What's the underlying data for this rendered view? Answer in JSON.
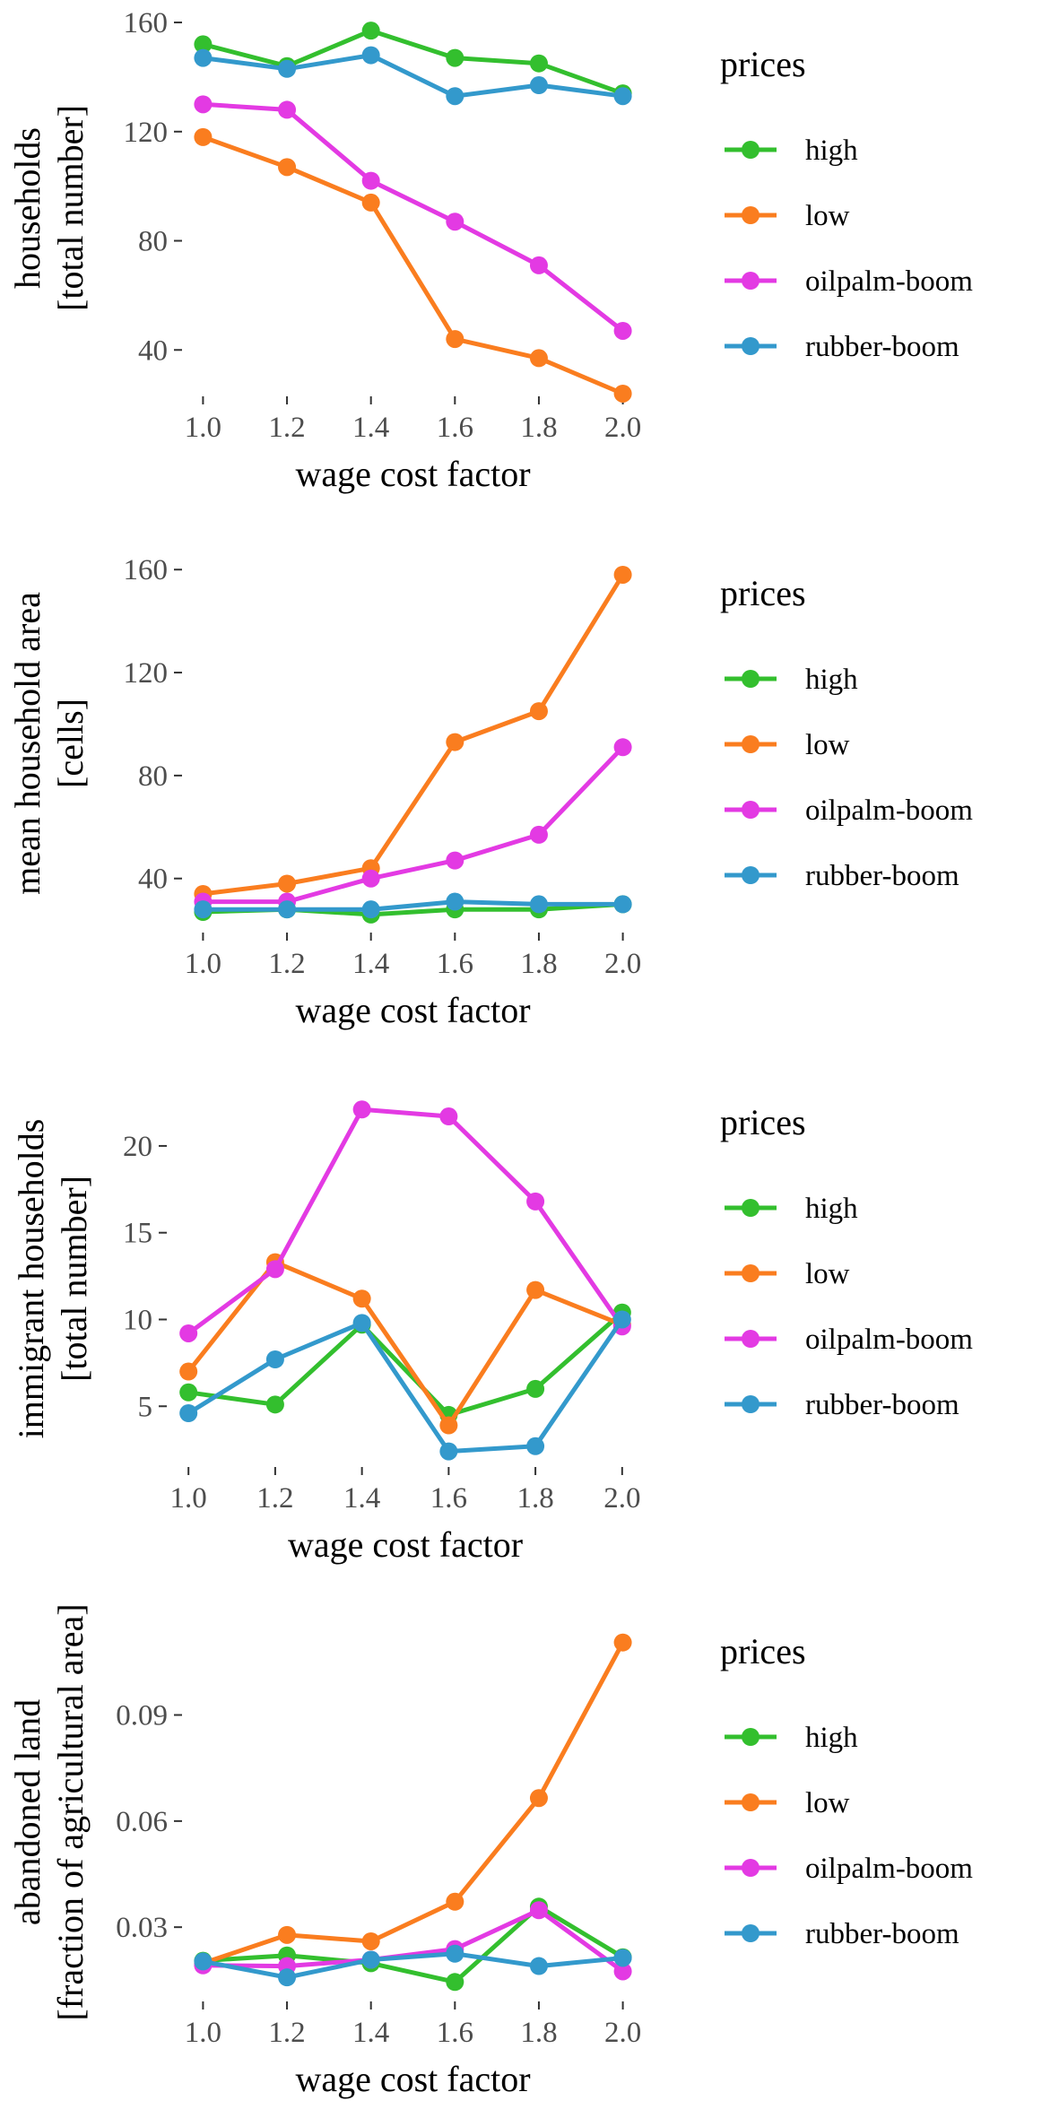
{
  "colors": {
    "high": "#33bf2e",
    "low": "#fa7d1f",
    "oilpalm-boom": "#e33ae3",
    "rubber-boom": "#3399cc",
    "tick": "#333333",
    "tick_label": "#4d4d4d"
  },
  "legend": {
    "title": "prices",
    "entries": [
      "high",
      "low",
      "oilpalm-boom",
      "rubber-boom"
    ]
  },
  "chart_data": [
    {
      "type": "line",
      "xlabel": "wage cost factor",
      "ylabel_lines": [
        "households",
        "[total number]"
      ],
      "x": [
        1.0,
        1.2,
        1.4,
        1.6,
        1.8,
        2.0
      ],
      "x_tick_labels": [
        "1.0",
        "1.2",
        "1.4",
        "1.6",
        "1.8",
        "2.0"
      ],
      "y_ticks": [
        40,
        80,
        120,
        160
      ],
      "y_tick_labels": [
        "40",
        "80",
        "120",
        "160"
      ],
      "xlim": [
        0.95,
        2.05
      ],
      "ylim": [
        23,
        161
      ],
      "grid": false,
      "legend_position": "right",
      "series": [
        {
          "name": "high",
          "values": [
            152,
            144,
            157,
            147,
            145,
            134
          ]
        },
        {
          "name": "low",
          "values": [
            118,
            107,
            94,
            44,
            37,
            24
          ]
        },
        {
          "name": "oilpalm-boom",
          "values": [
            130,
            128,
            102,
            87,
            71,
            47
          ]
        },
        {
          "name": "rubber-boom",
          "values": [
            147,
            143,
            148,
            133,
            137,
            133
          ]
        }
      ]
    },
    {
      "type": "line",
      "xlabel": "wage cost factor",
      "ylabel_lines": [
        "mean household area",
        "[cells]"
      ],
      "x": [
        1.0,
        1.2,
        1.4,
        1.6,
        1.8,
        2.0
      ],
      "x_tick_labels": [
        "1.0",
        "1.2",
        "1.4",
        "1.6",
        "1.8",
        "2.0"
      ],
      "y_ticks": [
        40,
        80,
        120,
        160
      ],
      "y_tick_labels": [
        "40",
        "80",
        "120",
        "160"
      ],
      "xlim": [
        0.95,
        2.05
      ],
      "ylim": [
        19,
        166
      ],
      "grid": false,
      "legend_position": "right",
      "series": [
        {
          "name": "high",
          "values": [
            27,
            28,
            26,
            28,
            28,
            30
          ]
        },
        {
          "name": "low",
          "values": [
            34,
            38,
            44,
            93,
            105,
            158
          ]
        },
        {
          "name": "oilpalm-boom",
          "values": [
            31,
            31,
            40,
            47,
            57,
            91
          ]
        },
        {
          "name": "rubber-boom",
          "values": [
            28,
            28,
            28,
            31,
            30,
            30
          ]
        }
      ]
    },
    {
      "type": "line",
      "xlabel": "wage cost factor",
      "ylabel_lines": [
        "immigrant households",
        "[total number]"
      ],
      "x": [
        1.0,
        1.2,
        1.4,
        1.6,
        1.8,
        2.0
      ],
      "x_tick_labels": [
        "1.0",
        "1.2",
        "1.4",
        "1.6",
        "1.8",
        "2.0"
      ],
      "y_ticks": [
        5,
        10,
        15,
        20
      ],
      "y_tick_labels": [
        "5",
        "10",
        "15",
        "20"
      ],
      "xlim": [
        0.95,
        2.05
      ],
      "ylim": [
        1.5,
        23.2
      ],
      "grid": false,
      "legend_position": "right",
      "series": [
        {
          "name": "high",
          "values": [
            5.8,
            5.1,
            9.7,
            4.5,
            6.0,
            10.4
          ]
        },
        {
          "name": "low",
          "values": [
            7.0,
            13.3,
            11.2,
            3.9,
            11.7,
            9.7
          ]
        },
        {
          "name": "oilpalm-boom",
          "values": [
            9.2,
            12.9,
            22.1,
            21.7,
            16.8,
            9.6
          ]
        },
        {
          "name": "rubber-boom",
          "values": [
            4.6,
            7.7,
            9.8,
            2.4,
            2.7,
            10.0
          ]
        }
      ]
    },
    {
      "type": "line",
      "xlabel": "wage cost factor",
      "ylabel_lines": [
        "abandoned land",
        "[fraction of agricultural area]"
      ],
      "x": [
        1.0,
        1.2,
        1.4,
        1.6,
        1.8,
        2.0
      ],
      "x_tick_labels": [
        "1.0",
        "1.2",
        "1.4",
        "1.6",
        "1.8",
        "2.0"
      ],
      "y_ticks": [
        0.03,
        0.06,
        0.09
      ],
      "y_tick_labels": [
        "0.03",
        "0.06",
        "0.09"
      ],
      "xlim": [
        0.95,
        2.05
      ],
      "ylim": [
        0.009,
        0.116
      ],
      "grid": false,
      "legend_position": "right",
      "series": [
        {
          "name": "high",
          "values": [
            0.0205,
            0.022,
            0.0198,
            0.0145,
            0.0358,
            0.0215
          ]
        },
        {
          "name": "low",
          "values": [
            0.0198,
            0.0278,
            0.026,
            0.0372,
            0.0665,
            0.1105
          ]
        },
        {
          "name": "oilpalm-boom",
          "values": [
            0.0192,
            0.019,
            0.0208,
            0.0238,
            0.0348,
            0.0175
          ]
        },
        {
          "name": "rubber-boom",
          "values": [
            0.0203,
            0.0158,
            0.0208,
            0.0225,
            0.019,
            0.0213
          ]
        }
      ]
    }
  ]
}
